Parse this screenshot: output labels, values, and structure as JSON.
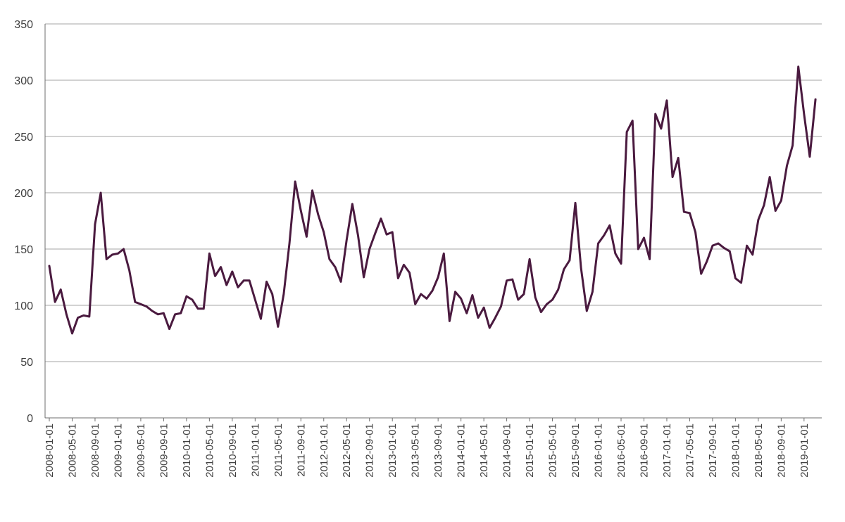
{
  "chart_data": {
    "type": "line",
    "title": "",
    "xlabel": "",
    "ylabel": "",
    "ylim": [
      0,
      350
    ],
    "yticks": [
      "0",
      "50",
      "100",
      "150",
      "200",
      "250",
      "300",
      "350"
    ],
    "grid": true,
    "legend": "none",
    "line_color": "#4a1a3f",
    "x_tick_labels": [
      "2008-01-01",
      "2008-05-01",
      "2008-09-01",
      "2009-01-01",
      "2009-05-01",
      "2009-09-01",
      "2010-01-01",
      "2010-05-01",
      "2010-09-01",
      "2011-01-01",
      "2011-05-01",
      "2011-09-01",
      "2012-01-01",
      "2012-05-01",
      "2012-09-01",
      "2013-01-01",
      "2013-05-01",
      "2013-09-01",
      "2014-01-01",
      "2014-05-01",
      "2014-09-01",
      "2015-01-01",
      "2015-05-01",
      "2015-09-01",
      "2016-01-01",
      "2016-05-01",
      "2016-09-01",
      "2017-01-01",
      "2017-05-01",
      "2017-09-01",
      "2018-01-01",
      "2018-05-01",
      "2018-09-01",
      "2019-01-01"
    ],
    "x_start": "2008-01",
    "x_end": "2019-04",
    "series": [
      {
        "values": [
          135,
          103,
          114,
          92,
          75,
          89,
          91,
          90,
          172,
          200,
          141,
          145,
          146,
          150,
          131,
          103,
          101,
          99,
          95,
          92,
          93,
          79,
          92,
          93,
          108,
          105,
          97,
          97,
          146,
          126,
          134,
          118,
          130,
          116,
          122,
          122,
          105,
          88,
          121,
          110,
          81,
          110,
          155,
          210,
          184,
          161,
          202,
          181,
          165,
          141,
          134,
          121,
          158,
          190,
          162,
          125,
          150,
          164,
          177,
          163,
          165,
          124,
          136,
          129,
          101,
          110,
          106,
          113,
          125,
          146,
          86,
          112,
          106,
          93,
          109,
          89,
          98,
          80,
          89,
          99,
          122,
          123,
          105,
          110,
          141,
          107,
          94,
          101,
          105,
          114,
          132,
          140,
          191,
          133,
          95,
          112,
          155,
          162,
          171,
          146,
          137,
          254,
          264,
          150,
          160,
          141,
          270,
          257,
          282,
          214,
          231,
          183,
          182,
          165,
          128,
          139,
          153,
          155,
          151,
          148,
          124,
          120,
          153,
          145,
          176,
          189,
          214,
          184,
          193,
          224,
          242,
          312,
          270,
          232,
          283
        ]
      }
    ]
  }
}
